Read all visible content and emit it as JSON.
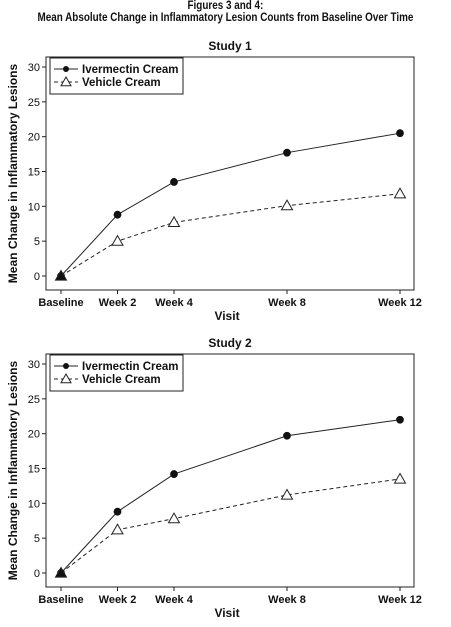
{
  "header": {
    "title_line1": "Figures 3 and 4:",
    "title_line2": "Mean Absolute Change in Inflammatory Lesion Counts from Baseline Over Time"
  },
  "chart_data": [
    {
      "type": "line",
      "title": "Study 1",
      "xlabel": "Visit",
      "ylabel": "Mean Change in Inflammatory Lesions",
      "categories": [
        "Baseline",
        "Week 2",
        "Week 4",
        "Week 8",
        "Week 12"
      ],
      "x_weeks": [
        0,
        2,
        4,
        8,
        12
      ],
      "ylim": [
        0,
        30
      ],
      "yticks": [
        0,
        5,
        10,
        15,
        20,
        25,
        30
      ],
      "grid": false,
      "legend_position": "top-left",
      "series": [
        {
          "name": "Ivermectin Cream",
          "marker": "filled-circle",
          "line": "solid",
          "values": [
            0,
            8.8,
            13.5,
            17.7,
            20.5
          ]
        },
        {
          "name": "Vehicle Cream",
          "marker": "open-triangle",
          "line": "dashed",
          "values": [
            0,
            5.0,
            7.7,
            10.1,
            11.8
          ]
        }
      ]
    },
    {
      "type": "line",
      "title": "Study 2",
      "xlabel": "Visit",
      "ylabel": "Mean Change in Inflammatory Lesions",
      "categories": [
        "Baseline",
        "Week 2",
        "Week 4",
        "Week 8",
        "Week 12"
      ],
      "x_weeks": [
        0,
        2,
        4,
        8,
        12
      ],
      "ylim": [
        0,
        30
      ],
      "yticks": [
        0,
        5,
        10,
        15,
        20,
        25,
        30
      ],
      "grid": false,
      "legend_position": "top-left",
      "series": [
        {
          "name": "Ivermectin Cream",
          "marker": "filled-circle",
          "line": "solid",
          "values": [
            0,
            8.8,
            14.2,
            19.7,
            22.0
          ]
        },
        {
          "name": "Vehicle Cream",
          "marker": "open-triangle",
          "line": "dashed",
          "values": [
            0,
            6.2,
            7.8,
            11.2,
            13.5
          ]
        }
      ]
    }
  ]
}
